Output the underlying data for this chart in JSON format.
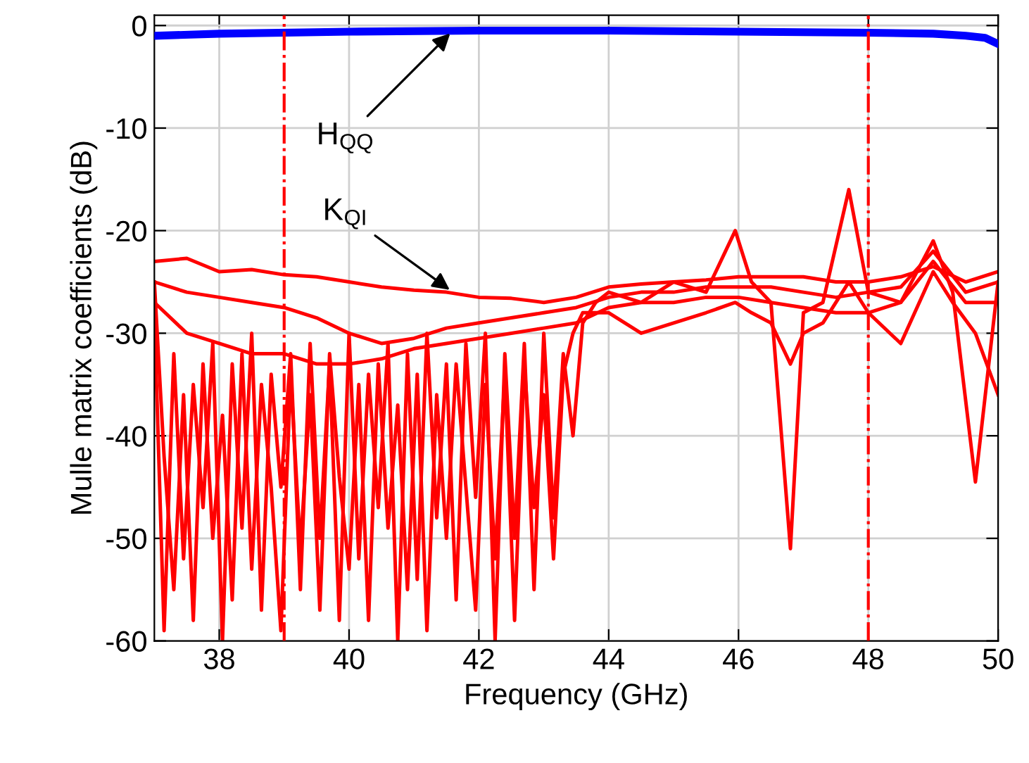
{
  "chart_data": {
    "type": "line",
    "xlabel": "Frequency (GHz)",
    "ylabel": "Mulle matrix coefficients (dB)",
    "xlim": [
      37,
      50
    ],
    "xticks": [
      38,
      40,
      42,
      44,
      46,
      48,
      50
    ],
    "ylim": [
      -60,
      1
    ],
    "yticks": [
      -60,
      -50,
      -40,
      -30,
      -20,
      -10,
      0
    ],
    "grid": true,
    "ref_lines": [
      {
        "axis": "x",
        "value": 39,
        "color": "#ff0000",
        "line_style": "dashdot"
      },
      {
        "axis": "x",
        "value": 48,
        "color": "#ff0000",
        "line_style": "dashdot"
      }
    ],
    "annotations": [
      {
        "text": "H$_{QQ}$",
        "x": 41.6,
        "y": -0.5
      },
      {
        "text": "K$_{QI}$",
        "x": 41.6,
        "y": -26
      }
    ],
    "series": [
      {
        "color": "#0000ff",
        "x": [
          37,
          38,
          40,
          42,
          44,
          46,
          48,
          49,
          49.5,
          49.8,
          50
        ],
        "values": [
          -1,
          -0.8,
          -0.6,
          -0.5,
          -0.5,
          -0.6,
          -0.7,
          -0.8,
          -1,
          -1.2,
          -1.8
        ]
      },
      {
        "color": "#ff0000",
        "x": [
          37.0,
          37.15,
          37.3,
          37.45,
          37.6,
          37.75,
          37.9,
          38.05,
          38.2,
          38.35,
          38.5,
          38.65,
          38.8,
          38.95,
          39.1,
          39.25,
          39.4,
          39.55,
          39.7,
          39.85,
          40.0,
          40.15,
          40.3,
          40.45,
          40.6,
          40.75,
          40.9,
          41.05,
          41.2,
          41.35,
          41.5,
          41.65,
          41.8,
          41.95,
          42.1,
          42.25,
          42.4,
          42.55,
          42.7,
          42.85,
          43.0,
          43.15,
          43.3,
          43.45,
          43.6,
          43.8,
          44.0,
          44.5,
          45.0,
          45.5,
          45.95,
          46.2,
          46.5,
          46.8,
          47.0,
          47.3,
          47.7,
          48.0,
          48.5,
          49.0,
          49.3,
          49.65,
          50.0
        ],
        "values": [
          -28,
          -59,
          -32,
          -52,
          -35,
          -47,
          -31,
          -60,
          -33,
          -49,
          -30,
          -57,
          -34,
          -45,
          -32,
          -55,
          -31,
          -50,
          -33,
          -58,
          -30,
          -52,
          -34,
          -47,
          -31,
          -60,
          -32,
          -54,
          -30,
          -48,
          -33,
          -56,
          -31,
          -46,
          -30,
          -60,
          -32,
          -50,
          -31,
          -55,
          -30,
          -48,
          -32,
          -40,
          -29,
          -27,
          -26,
          -27,
          -25,
          -26,
          -20,
          -25,
          -27,
          -51,
          -28,
          -27,
          -16,
          -26,
          -27,
          -21,
          -26,
          -44.5,
          -25
        ]
      },
      {
        "color": "#ff0000",
        "x": [
          37.0,
          37.15,
          37.3,
          37.45,
          37.6,
          37.75,
          37.9,
          38.05,
          38.2,
          38.35,
          38.5,
          38.65,
          38.8,
          38.95,
          39.1,
          39.25,
          39.4,
          39.55,
          39.7,
          39.85,
          40.0,
          40.15,
          40.3,
          40.45,
          40.6,
          40.75,
          40.9,
          41.05,
          41.2,
          41.35,
          41.5,
          41.65,
          41.8,
          41.95,
          42.1,
          42.25,
          42.4,
          42.55,
          42.7,
          42.85,
          43.0,
          43.15,
          43.3,
          43.45,
          43.6,
          43.8,
          44.0,
          44.5,
          45.0,
          45.5,
          45.95,
          46.2,
          46.5,
          46.8,
          47.0,
          47.3,
          47.7,
          48.0,
          48.5,
          49.0,
          49.3,
          49.65,
          50.0
        ],
        "values": [
          -25,
          -42,
          -55,
          -36,
          -58,
          -33,
          -50,
          -38,
          -56,
          -32,
          -53,
          -35,
          -45,
          -59,
          -34,
          -51,
          -36,
          -57,
          -32,
          -44,
          -53,
          -35,
          -58,
          -33,
          -49,
          -37,
          -55,
          -34,
          -59,
          -36,
          -50,
          -33,
          -45,
          -57,
          -35,
          -52,
          -34,
          -58,
          -33,
          -47,
          -36,
          -52,
          -34,
          -30,
          -28,
          -28,
          -28,
          -30,
          -29,
          -28,
          -27,
          -28,
          -29,
          -33,
          -30,
          -29,
          -25,
          -28,
          -31,
          -24,
          -27,
          -30,
          -36
        ]
      },
      {
        "color": "#ff0000",
        "x": [
          37,
          37.5,
          38,
          38.5,
          39,
          39.5,
          40,
          40.5,
          41,
          41.5,
          42,
          42.5,
          43,
          43.5,
          44,
          44.5,
          45,
          45.5,
          46,
          46.5,
          47,
          47.5,
          48,
          48.5,
          49,
          49.5,
          50
        ],
        "values": [
          -23,
          -22.7,
          -24,
          -23.8,
          -24.3,
          -24.5,
          -25,
          -25.5,
          -25.8,
          -26,
          -26.5,
          -26.6,
          -27,
          -26.5,
          -25.5,
          -25.2,
          -25,
          -24.8,
          -24.5,
          -24.5,
          -24.5,
          -25,
          -25,
          -24.5,
          -23.5,
          -25,
          -24
        ]
      },
      {
        "color": "#ff0000",
        "x": [
          37,
          37.5,
          38,
          38.5,
          39,
          39.5,
          40,
          40.5,
          41,
          41.5,
          42,
          42.5,
          43,
          43.5,
          44,
          44.5,
          45,
          45.5,
          46,
          46.5,
          47,
          47.5,
          48,
          48.5,
          49,
          49.5,
          50
        ],
        "values": [
          -25,
          -26,
          -26.5,
          -27,
          -27.5,
          -28.5,
          -30,
          -31,
          -30.5,
          -29.5,
          -29,
          -28.5,
          -28,
          -27.5,
          -26.5,
          -26,
          -26,
          -25.5,
          -25.5,
          -25.5,
          -26,
          -26.5,
          -26,
          -25.5,
          -22,
          -26,
          -25
        ]
      },
      {
        "color": "#ff0000",
        "x": [
          37,
          37.5,
          38,
          38.5,
          39,
          39.5,
          40,
          40.5,
          41,
          41.5,
          42,
          42.5,
          43,
          43.5,
          44,
          44.5,
          45,
          45.5,
          46,
          46.5,
          47,
          47.5,
          48,
          48.5,
          49,
          49.5,
          50
        ],
        "values": [
          -27,
          -30,
          -31,
          -32,
          -32,
          -33,
          -33,
          -32.5,
          -31.5,
          -31,
          -30.5,
          -30,
          -29.5,
          -29,
          -27.5,
          -27,
          -27,
          -26.5,
          -26.5,
          -27,
          -27.5,
          -28,
          -28,
          -27,
          -23,
          -27,
          -27
        ]
      }
    ]
  }
}
